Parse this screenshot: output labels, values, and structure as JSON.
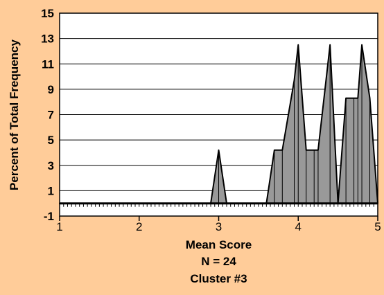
{
  "chart_data": {
    "type": "area",
    "ylabel": "Percent of Total Frequency",
    "xlabel": "Mean Score",
    "caption_lines": [
      "N = 24",
      "Cluster #3"
    ],
    "xlim": [
      1,
      5
    ],
    "ylim": [
      -1,
      15
    ],
    "x_ticks": [
      "1",
      "2",
      "3",
      "4",
      "5"
    ],
    "y_ticks": [
      "15",
      "13",
      "11",
      "9",
      "7",
      "5",
      "3",
      "1",
      "-1"
    ],
    "baseline": 0,
    "series": [
      {
        "x": [
          1,
          2.9,
          3.0,
          3.1,
          3.6,
          3.7,
          3.8,
          3.95,
          4.0,
          4.1,
          4.2,
          4.25,
          4.4,
          4.5,
          4.6,
          4.7,
          4.75,
          4.8,
          4.9,
          5.0
        ],
        "y": [
          0,
          0,
          4.2,
          0,
          0,
          4.2,
          4.2,
          9.7,
          12.5,
          4.2,
          4.2,
          4.2,
          12.5,
          0,
          8.3,
          8.3,
          8.3,
          12.5,
          8.3,
          0
        ]
      }
    ],
    "colors": {
      "fill": "#999999",
      "line": "#000000",
      "plot_bg": "#FFFFFF",
      "background": "#FFCC99"
    },
    "grid": "horizontal"
  }
}
